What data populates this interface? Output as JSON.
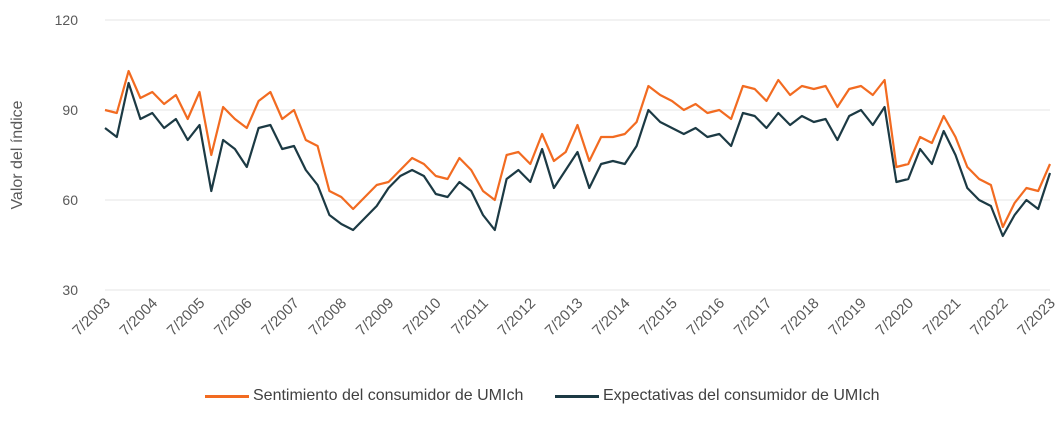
{
  "chart_data": {
    "type": "line",
    "ylabel": "Valor del índice",
    "categories": [
      "7/2003",
      null,
      null,
      null,
      "7/2004",
      null,
      null,
      null,
      "7/2005",
      null,
      null,
      null,
      "7/2006",
      null,
      null,
      null,
      "7/2007",
      null,
      null,
      null,
      "7/2008",
      null,
      null,
      null,
      "7/2009",
      null,
      null,
      null,
      "7/2010",
      null,
      null,
      null,
      "7/2011",
      null,
      null,
      null,
      "7/2012",
      null,
      null,
      null,
      "7/2013",
      null,
      null,
      null,
      "7/2014",
      null,
      null,
      null,
      "7/2015",
      null,
      null,
      null,
      "7/2016",
      null,
      null,
      null,
      "7/2017",
      null,
      null,
      null,
      "7/2018",
      null,
      null,
      null,
      "7/2019",
      null,
      null,
      null,
      "7/2020",
      null,
      null,
      null,
      "7/2021",
      null,
      null,
      null,
      "7/2022",
      null,
      null,
      null,
      "7/2023"
    ],
    "series": [
      {
        "name": "Sentimiento del consumidor de UMIch",
        "color": "#f26b21",
        "values": [
          90,
          89,
          103,
          94,
          96,
          92,
          95,
          87,
          96,
          75,
          91,
          87,
          84,
          93,
          96,
          87,
          90,
          80,
          78,
          63,
          61,
          57,
          61,
          65,
          66,
          70,
          74,
          72,
          68,
          67,
          74,
          70,
          63,
          60,
          75,
          76,
          72,
          82,
          73,
          76,
          85,
          73,
          81,
          81,
          82,
          86,
          98,
          95,
          93,
          90,
          92,
          89,
          90,
          87,
          98,
          97,
          93,
          100,
          95,
          98,
          97,
          98,
          91,
          97,
          98,
          95,
          100,
          71,
          72,
          81,
          79,
          88,
          81,
          71,
          67,
          65,
          51,
          59,
          64,
          63,
          72
        ]
      },
      {
        "name": "Expectativas del consumidor de UMIch",
        "color": "#1c3a44",
        "values": [
          84,
          81,
          99,
          87,
          89,
          84,
          87,
          80,
          85,
          63,
          80,
          77,
          71,
          84,
          85,
          77,
          78,
          70,
          65,
          55,
          52,
          50,
          54,
          58,
          64,
          68,
          70,
          68,
          62,
          61,
          66,
          63,
          55,
          50,
          67,
          70,
          66,
          77,
          64,
          70,
          76,
          64,
          72,
          73,
          72,
          78,
          90,
          86,
          84,
          82,
          84,
          81,
          82,
          78,
          89,
          88,
          84,
          89,
          85,
          88,
          86,
          87,
          80,
          88,
          90,
          85,
          91,
          66,
          67,
          77,
          72,
          83,
          75,
          64,
          60,
          58,
          48,
          55,
          60,
          57,
          69
        ]
      }
    ],
    "ylim": [
      30,
      120
    ],
    "yticks": [
      30,
      60,
      90,
      120
    ],
    "grid": true
  }
}
